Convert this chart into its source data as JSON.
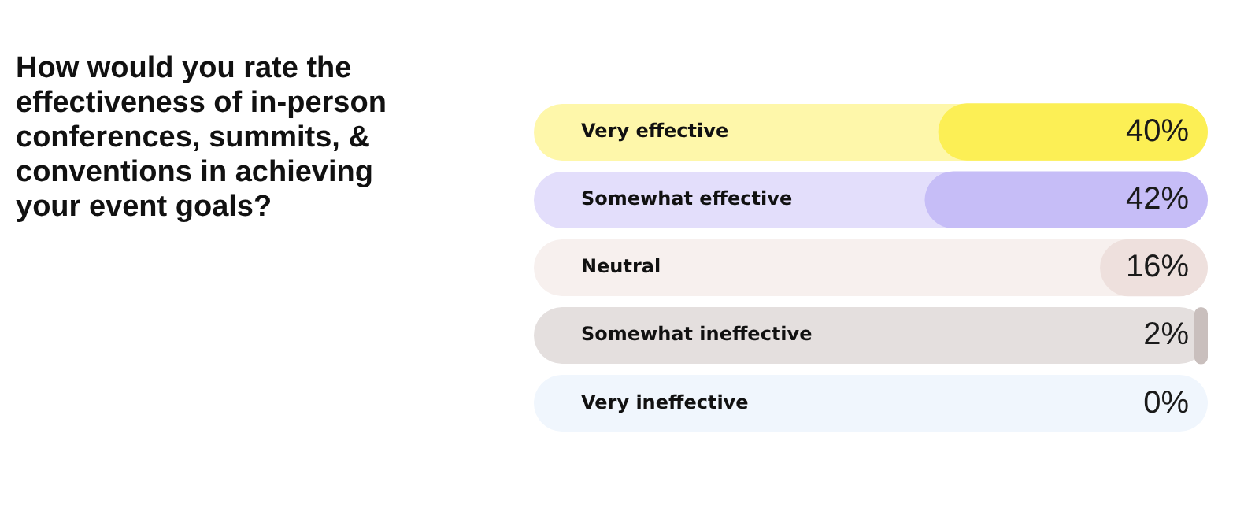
{
  "chart_data": {
    "type": "bar",
    "orientation": "horizontal",
    "title": "How would you rate the effectiveness of in-person conferences, summits, & conventions in achieving your event goals?",
    "categories": [
      "Very effective",
      "Somewhat effective",
      "Neutral",
      "Somewhat ineffective",
      "Very ineffective"
    ],
    "values": [
      40,
      42,
      16,
      2,
      0
    ],
    "value_labels": [
      "40%",
      "42%",
      "16%",
      "2%",
      "0%"
    ],
    "colors": [
      "#fcef55",
      "#c6bdf7",
      "#eee0dd",
      "#c9bfbd",
      "#e1edfb"
    ],
    "xlim": [
      100,
      0
    ],
    "tick_labels": "y",
    "grid": false,
    "legend": false
  }
}
